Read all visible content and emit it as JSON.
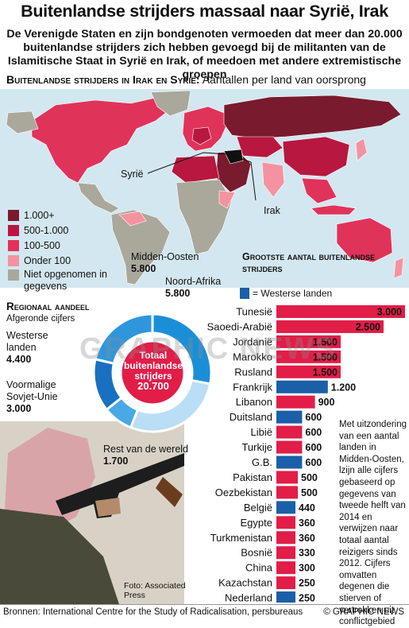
{
  "header": {
    "title": "Buitenlandse strijders massaal naar Syrië, Irak",
    "subtitle": "De Verenigde Staten en zijn bondgenoten vermoeden dat meer dan 20.000 buitenlandse strijders zich hebben gevoegd bij de militanten van de Islamitische Staat in Syrië en Irak, of meedoen met andere extremistische groepen"
  },
  "map": {
    "heading": "Buitenlandse strijders in Irak en Syrië:",
    "heading_rest": " Aantallen per land van oorsprong",
    "label_syria": "Syrië",
    "label_iraq": "Irak"
  },
  "legend": [
    {
      "label": "1.000+",
      "color": "#7a1a2e"
    },
    {
      "label": "500-1.000",
      "color": "#b8173f"
    },
    {
      "label": "100-500",
      "color": "#e0335a"
    },
    {
      "label": "Onder 100",
      "color": "#f4939f"
    },
    {
      "label": "Niet opgenomen in gegevens",
      "color": "#a9a89b"
    }
  ],
  "regional": {
    "heading": "Regionaal aandeel",
    "sub": "Afgeronde cijfers",
    "center_label": "Totaal buitenlandse strijders",
    "center_value": "20.700",
    "photo_credit": "Foto: Associated Press"
  },
  "chart_data": [
    {
      "type": "pie",
      "title": "Regionaal aandeel",
      "subtitle": "Afgeronde cijfers",
      "total_label": "Totaal buitenlandse strijders",
      "total": 20700,
      "categories": [
        "Midden-Oosten",
        "Noord-Afrika",
        "Rest van de wereld",
        "Voormalige Sovjet-Unie",
        "Westerse landen"
      ],
      "values": [
        5800,
        5800,
        1700,
        3000,
        4400
      ],
      "value_labels": [
        "5.800",
        "5.800",
        "1.700",
        "3.000",
        "4.400"
      ]
    },
    {
      "type": "bar",
      "title": "Grootste aantal buitenlandse strijders",
      "legend": "= Westerse landen",
      "categories": [
        "Tunesië",
        "Saoedi-Arabië",
        "Jordanië",
        "Marokko",
        "Rusland",
        "Frankrijk",
        "Libanon",
        "Duitsland",
        "Libië",
        "Turkije",
        "G.B.",
        "Pakistan",
        "Oezbekistan",
        "België",
        "Egypte",
        "Turkmenistan",
        "Bosnië",
        "China",
        "Kazachstan",
        "Nederland"
      ],
      "values": [
        3000,
        2500,
        1500,
        1500,
        1500,
        1200,
        900,
        600,
        600,
        600,
        600,
        500,
        500,
        440,
        360,
        360,
        330,
        300,
        250,
        250
      ],
      "value_labels": [
        "3.000",
        "2.500",
        "1.500",
        "1.500",
        "1.500",
        "1.200",
        "900",
        "600",
        "600",
        "600",
        "600",
        "500",
        "500",
        "440",
        "360",
        "360",
        "330",
        "300",
        "250",
        "250"
      ],
      "western": [
        false,
        false,
        false,
        false,
        false,
        true,
        false,
        true,
        false,
        false,
        true,
        false,
        false,
        true,
        false,
        false,
        false,
        false,
        false,
        true
      ],
      "colors": {
        "western": "#1a5fa8",
        "other": "#e11d48"
      }
    }
  ],
  "bars": {
    "heading": "Grootste aantal buitenlandse strijders",
    "legend_label": "= Westerse landen",
    "note": "Met uitzondering van een aantal landen in Midden-Oosten, lzijn alle cijfers gebaseerd op gegevens van tweede helft van 2014 en verwijzen naar totaal aantal reizigers sinds 2012. Cijfers omvatten degenen die stierven of vertrokken uit conflictgebied"
  },
  "footer": {
    "source": "Bronnen: International Centre for the Study of Radicalisation, persbureaus",
    "brand": "© GRAPHIC NEWS"
  },
  "watermark": "GRAPHIC NEWS"
}
